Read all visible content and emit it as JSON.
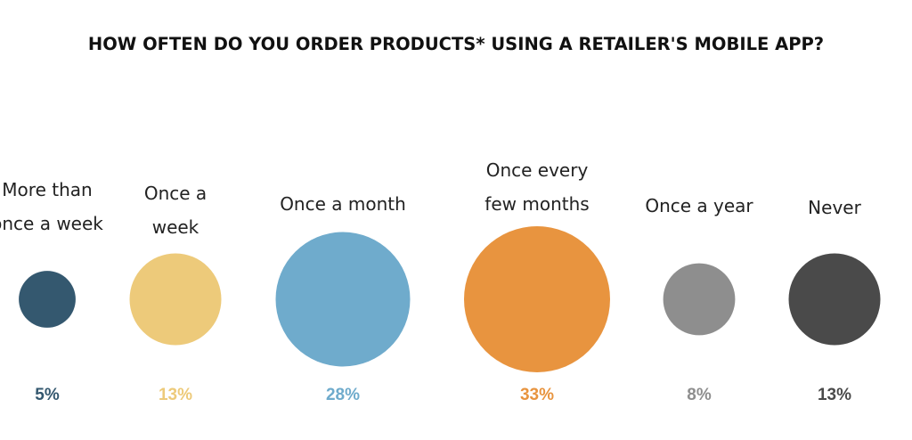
{
  "chart_data": {
    "type": "bubble",
    "title": "HOW OFTEN DO YOU ORDER PRODUCTS* USING A RETAILER'S MOBILE APP?",
    "categories": [
      {
        "label": [
          "More than",
          "once a week"
        ],
        "value": 5,
        "display": "5%",
        "color": "#34586f"
      },
      {
        "label": [
          "Once a",
          "week"
        ],
        "value": 13,
        "display": "13%",
        "color": "#edca7a"
      },
      {
        "label": [
          "Once a month"
        ],
        "value": 28,
        "display": "28%",
        "color": "#6fabcc"
      },
      {
        "label": [
          "Once every",
          "few months"
        ],
        "value": 33,
        "display": "33%",
        "color": "#e8943f"
      },
      {
        "label": [
          "Once a year"
        ],
        "value": 8,
        "display": "8%",
        "color": "#8e8e8e"
      },
      {
        "label": [
          "Never"
        ],
        "value": 13,
        "display": "13%",
        "color": "#4a4a4a"
      }
    ],
    "unit": "%"
  }
}
